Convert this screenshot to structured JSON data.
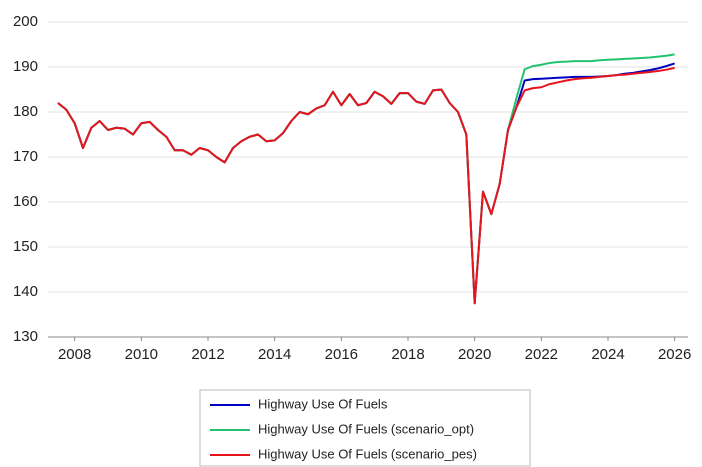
{
  "chart_data": {
    "type": "line",
    "x": [
      2007.5,
      2007.75,
      2008,
      2008.25,
      2008.5,
      2008.75,
      2009,
      2009.25,
      2009.5,
      2009.75,
      2010,
      2010.25,
      2010.5,
      2010.75,
      2011,
      2011.25,
      2011.5,
      2011.75,
      2012,
      2012.25,
      2012.5,
      2012.75,
      2013,
      2013.25,
      2013.5,
      2013.75,
      2014,
      2014.25,
      2014.5,
      2014.75,
      2015,
      2015.25,
      2015.5,
      2015.75,
      2016,
      2016.25,
      2016.5,
      2016.75,
      2017,
      2017.25,
      2017.5,
      2017.75,
      2018,
      2018.25,
      2018.5,
      2018.75,
      2019,
      2019.25,
      2019.5,
      2019.75,
      2020,
      2020.25,
      2020.5,
      2020.75,
      2021,
      2021.25,
      2021.5,
      2021.75,
      2022,
      2022.25,
      2022.5,
      2022.75,
      2023,
      2023.25,
      2023.5,
      2023.75,
      2024,
      2024.25,
      2024.5,
      2024.75,
      2025,
      2025.25,
      2025.5,
      2025.75,
      2026
    ],
    "series": [
      {
        "name": "Highway Use Of Fuels",
        "color": "#0000c0",
        "values": [
          182,
          180.5,
          177.5,
          172,
          176.5,
          178,
          176,
          176.5,
          176.3,
          175,
          177.5,
          177.8,
          176,
          174.5,
          171.5,
          171.5,
          170.5,
          172,
          171.5,
          170,
          168.8,
          172,
          173.5,
          174.5,
          175,
          173.5,
          173.7,
          175.3,
          178,
          180,
          179.5,
          180.8,
          181.5,
          184.5,
          181.5,
          184,
          181.5,
          182,
          184.5,
          183.5,
          181.8,
          184.2,
          184.2,
          182.3,
          181.8,
          184.8,
          185,
          182,
          180,
          175,
          137.5,
          162.3,
          157.3,
          164,
          176,
          181,
          187,
          187.3,
          187.4,
          187.5,
          187.6,
          187.7,
          187.8,
          187.8,
          187.8,
          187.9,
          188,
          188.2,
          188.5,
          188.7,
          189,
          189.3,
          189.7,
          190.2,
          190.8
        ]
      },
      {
        "name": "Highway Use Of Fuels (scenario_opt)",
        "color": "#21c36f",
        "values": [
          182,
          180.5,
          177.5,
          172,
          176.5,
          178,
          176,
          176.5,
          176.3,
          175,
          177.5,
          177.8,
          176,
          174.5,
          171.5,
          171.5,
          170.5,
          172,
          171.5,
          170,
          168.8,
          172,
          173.5,
          174.5,
          175,
          173.5,
          173.7,
          175.3,
          178,
          180,
          179.5,
          180.8,
          181.5,
          184.5,
          181.5,
          184,
          181.5,
          182,
          184.5,
          183.5,
          181.8,
          184.2,
          184.2,
          182.3,
          181.8,
          184.8,
          185,
          182,
          180,
          175,
          137.5,
          162.3,
          157.3,
          164,
          176,
          183,
          189.5,
          190.2,
          190.5,
          190.9,
          191.1,
          191.2,
          191.3,
          191.3,
          191.3,
          191.5,
          191.6,
          191.7,
          191.8,
          191.9,
          192,
          192.1,
          192.3,
          192.5,
          192.8
        ]
      },
      {
        "name": "Highway Use Of Fuels (scenario_pes)",
        "color": "#e8141c",
        "values": [
          182,
          180.5,
          177.5,
          172,
          176.5,
          178,
          176,
          176.5,
          176.3,
          175,
          177.5,
          177.8,
          176,
          174.5,
          171.5,
          171.5,
          170.5,
          172,
          171.5,
          170,
          168.8,
          172,
          173.5,
          174.5,
          175,
          173.5,
          173.7,
          175.3,
          178,
          180,
          179.5,
          180.8,
          181.5,
          184.5,
          181.5,
          184,
          181.5,
          182,
          184.5,
          183.5,
          181.8,
          184.2,
          184.2,
          182.3,
          181.8,
          184.8,
          185,
          182,
          180,
          175,
          137.5,
          162.3,
          157.3,
          164,
          176,
          181,
          184.8,
          185.3,
          185.5,
          186.2,
          186.6,
          187,
          187.3,
          187.5,
          187.6,
          187.8,
          188,
          188.2,
          188.3,
          188.5,
          188.7,
          188.9,
          189.1,
          189.4,
          189.8
        ]
      }
    ],
    "xlim": [
      2007.2,
      2026.4
    ],
    "xticks": [
      2008,
      2010,
      2012,
      2014,
      2016,
      2018,
      2020,
      2022,
      2024,
      2026
    ],
    "ylim": [
      130,
      200
    ],
    "yticks": [
      130,
      140,
      150,
      160,
      170,
      180,
      190,
      200
    ],
    "grid": true,
    "legend": "bottom"
  }
}
